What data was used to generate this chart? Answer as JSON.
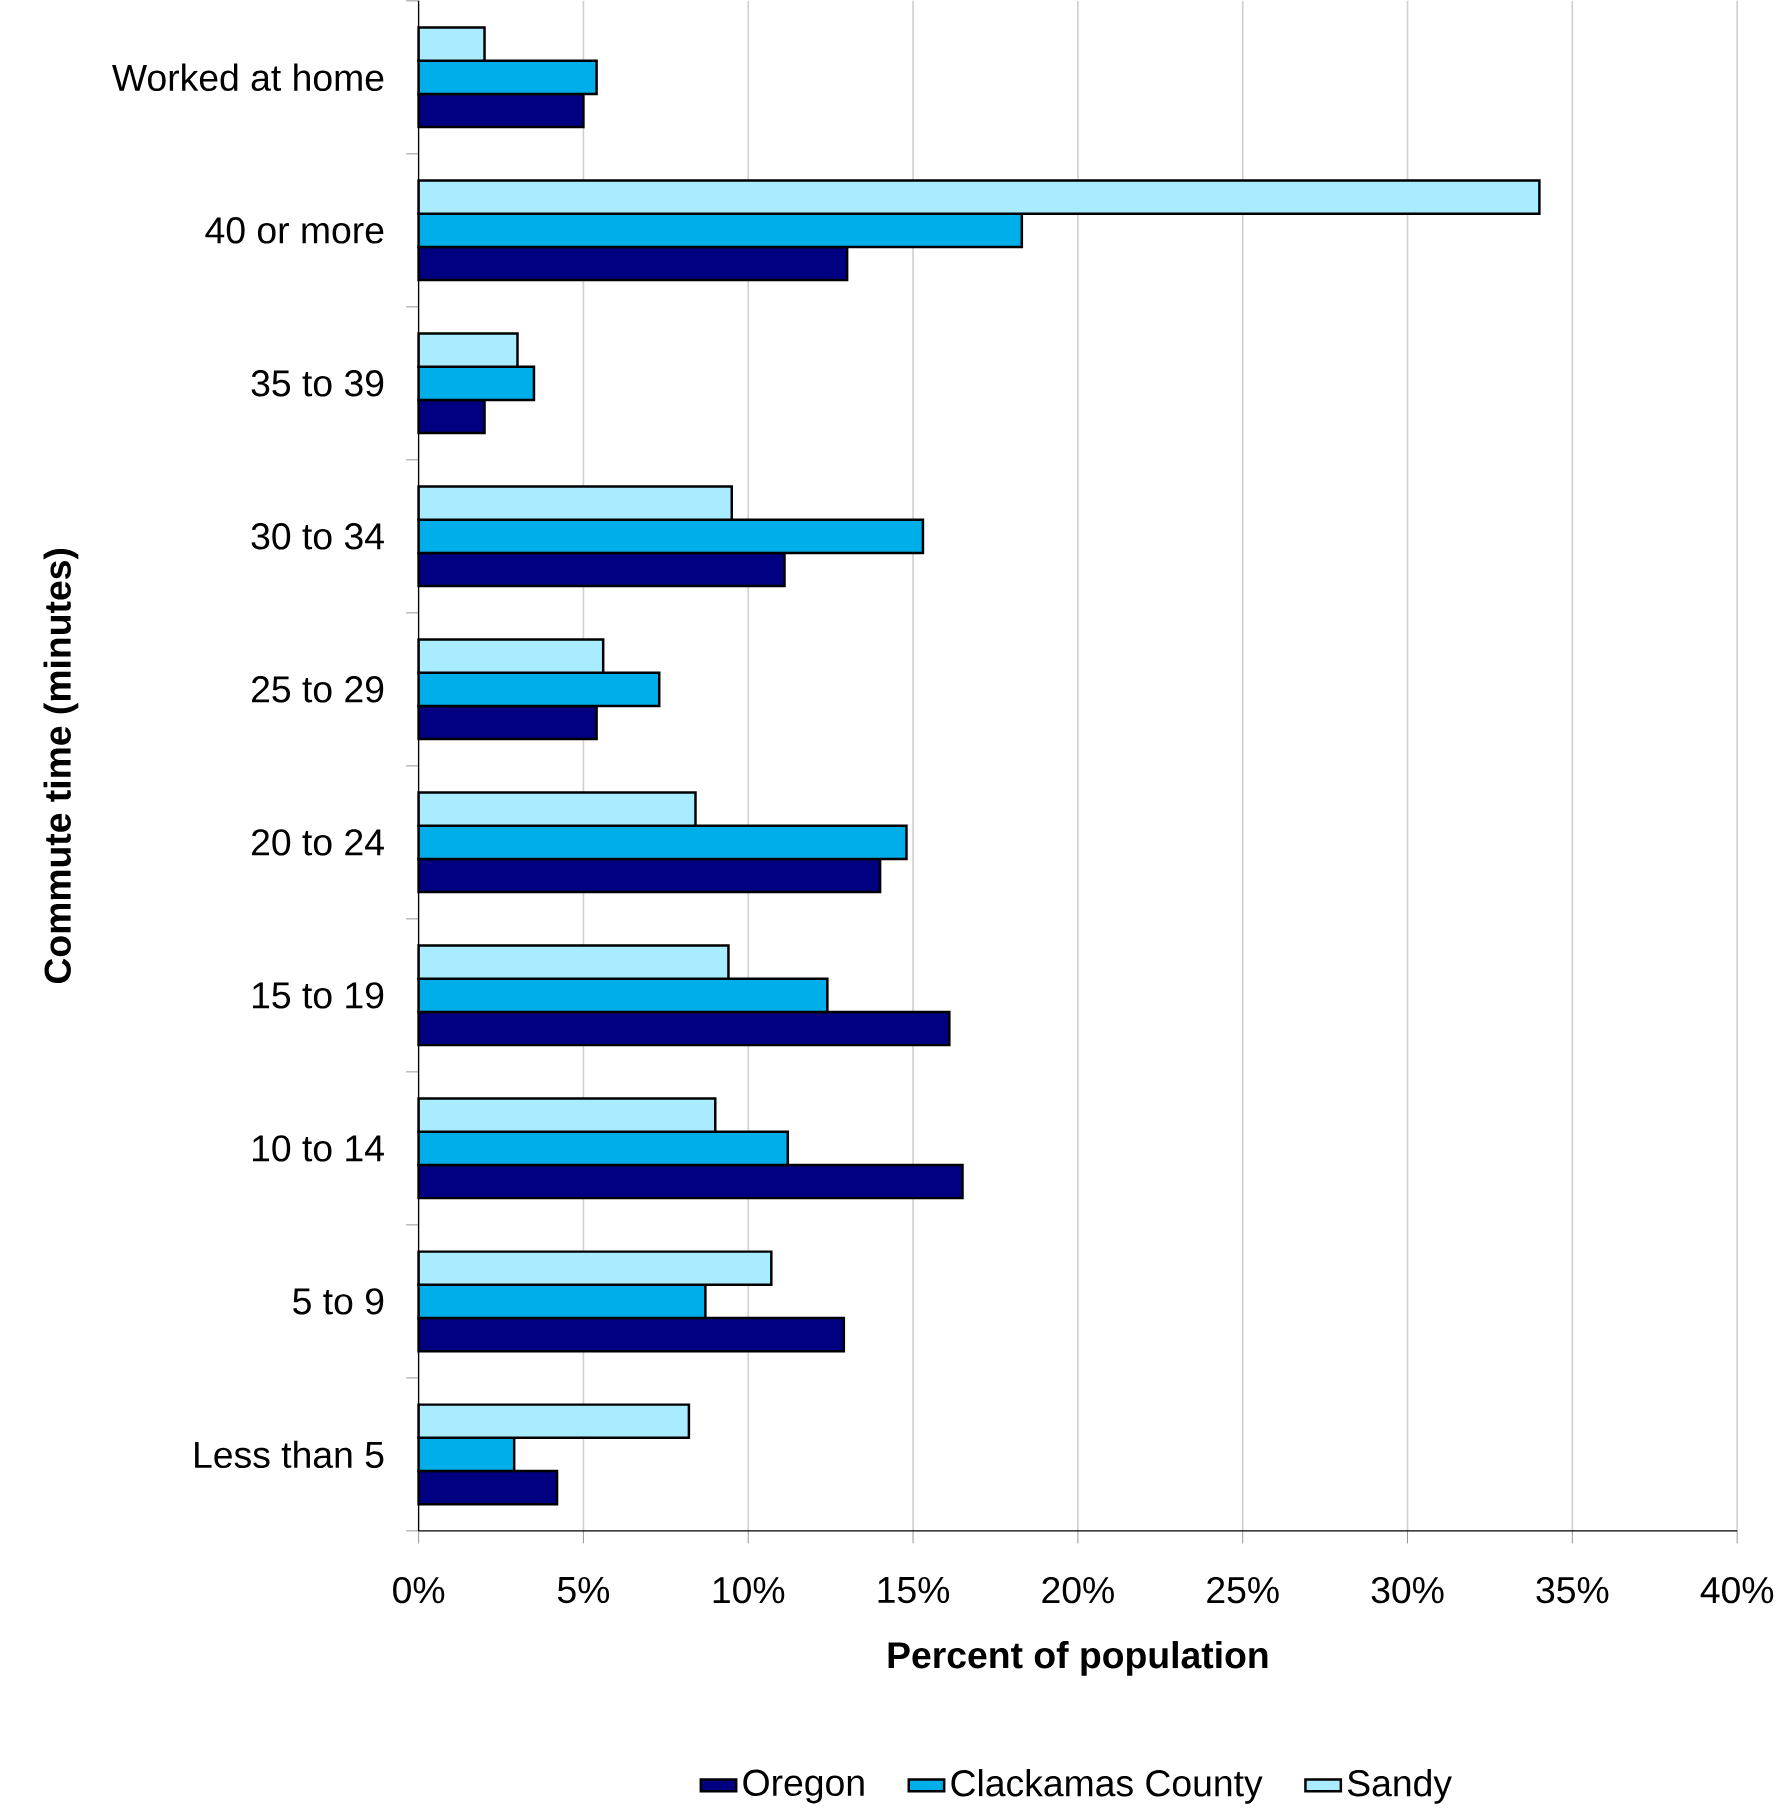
{
  "chart_data": {
    "type": "bar",
    "orientation": "horizontal",
    "xlabel": "Percent of population",
    "ylabel": "Commute time (minutes)",
    "categories": [
      "Worked at home",
      "40 or more",
      "35 to 39",
      "30 to 34",
      "25 to 29",
      "20 to 24",
      "15 to 19",
      "10 to 14",
      "5 to 9",
      "Less than 5"
    ],
    "series": [
      {
        "name": "Oregon",
        "color": "#000080",
        "values": [
          5.0,
          13.0,
          2.0,
          11.1,
          5.4,
          14.0,
          16.1,
          16.5,
          12.9,
          4.2
        ]
      },
      {
        "name": "Clackamas County",
        "color": "#00aeea",
        "values": [
          5.4,
          18.3,
          3.5,
          15.3,
          7.3,
          14.8,
          12.4,
          11.2,
          8.7,
          2.9
        ]
      },
      {
        "name": "Sandy",
        "color": "#aaecff",
        "values": [
          2.0,
          34.0,
          3.0,
          9.5,
          5.6,
          8.4,
          9.4,
          9.0,
          10.7,
          8.2
        ]
      }
    ],
    "xlim": [
      0,
      40
    ],
    "xticks": [
      {
        "value": 0,
        "label": "0%"
      },
      {
        "value": 5,
        "label": "5%"
      },
      {
        "value": 10,
        "label": "10%"
      },
      {
        "value": 15,
        "label": "15%"
      },
      {
        "value": 20,
        "label": "20%"
      },
      {
        "value": 25,
        "label": "25%"
      },
      {
        "value": 30,
        "label": "30%"
      },
      {
        "value": 35,
        "label": "35%"
      },
      {
        "value": 40,
        "label": "40%"
      }
    ],
    "grid": "x",
    "legend": "bottom"
  }
}
